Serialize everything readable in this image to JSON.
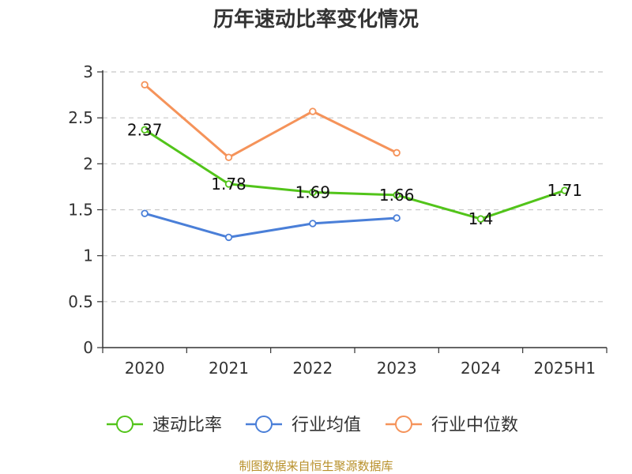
{
  "chart_data": {
    "type": "line",
    "title": "历年速动比率变化情况",
    "xlabel": "",
    "ylabel": "",
    "categories": [
      "2020",
      "2021",
      "2022",
      "2023",
      "2024",
      "2025H1"
    ],
    "ylim": [
      0,
      3
    ],
    "yticks": [
      "0",
      "0.5",
      "1",
      "1.5",
      "2",
      "2.5",
      "3"
    ],
    "grid": true,
    "legend_position": "bottom",
    "series": [
      {
        "name": "速动比率",
        "color": "#52c41a",
        "values": [
          2.37,
          1.78,
          1.69,
          1.66,
          1.4,
          1.71
        ],
        "labels": [
          "2.37",
          "1.78",
          "1.69",
          "1.66",
          "1.4",
          "1.71"
        ],
        "show_labels": true
      },
      {
        "name": "行业均值",
        "color": "#4a7fd8",
        "values": [
          1.46,
          1.2,
          1.35,
          1.41,
          null,
          null
        ],
        "show_labels": false
      },
      {
        "name": "行业中位数",
        "color": "#f5935a",
        "values": [
          2.86,
          2.07,
          2.57,
          2.12,
          null,
          null
        ],
        "show_labels": false
      }
    ]
  },
  "source": "制图数据来自恒生聚源数据库"
}
